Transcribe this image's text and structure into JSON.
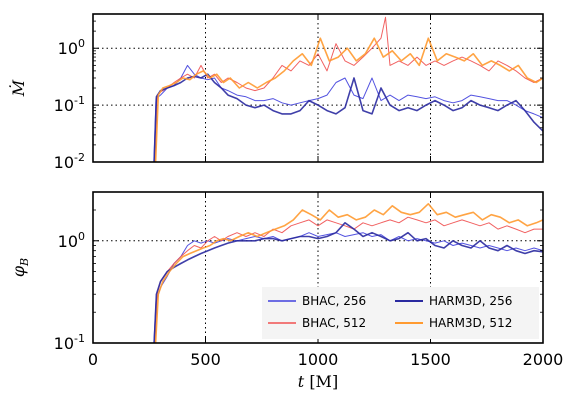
{
  "chart_data": [
    {
      "type": "line",
      "ylabel": "Ṁ",
      "yscale": "log",
      "ylim": [
        0.01,
        4
      ],
      "xlim": [
        0,
        2000
      ],
      "yticks": [
        {
          "label_base": "10",
          "label_exp": "-2",
          "v": 0.01
        },
        {
          "label_base": "10",
          "label_exp": "-1",
          "v": 0.1
        },
        {
          "label_base": "10",
          "label_exp": "0",
          "v": 1
        }
      ],
      "grid": "dotted at x=500,1000,1500 and y=0.1,1",
      "series": [
        {
          "name": "BHAC, 256",
          "color": "#4040dd",
          "width": 1.0,
          "x": [
            270,
            280,
            300,
            330,
            360,
            390,
            420,
            450,
            480,
            510,
            540,
            570,
            600,
            640,
            680,
            720,
            760,
            800,
            840,
            880,
            920,
            960,
            1000,
            1040,
            1080,
            1120,
            1160,
            1200,
            1240,
            1280,
            1320,
            1360,
            1400,
            1440,
            1480,
            1520,
            1560,
            1600,
            1640,
            1680,
            1720,
            1760,
            1800,
            1840,
            1880,
            1920,
            1960,
            2000
          ],
          "y": [
            0.01,
            0.13,
            0.15,
            0.2,
            0.22,
            0.3,
            0.5,
            0.35,
            0.3,
            0.28,
            0.3,
            0.2,
            0.18,
            0.15,
            0.14,
            0.12,
            0.12,
            0.13,
            0.11,
            0.1,
            0.11,
            0.12,
            0.13,
            0.15,
            0.25,
            0.3,
            0.15,
            0.13,
            0.3,
            0.12,
            0.15,
            0.12,
            0.15,
            0.14,
            0.13,
            0.14,
            0.12,
            0.11,
            0.12,
            0.15,
            0.14,
            0.13,
            0.12,
            0.12,
            0.1,
            0.08,
            0.07,
            0.06
          ]
        },
        {
          "name": "BHAC, 512",
          "color": "#f05050",
          "width": 1.0,
          "x": [
            275,
            285,
            300,
            330,
            360,
            390,
            420,
            450,
            480,
            510,
            540,
            570,
            600,
            640,
            680,
            720,
            760,
            800,
            840,
            880,
            920,
            960,
            1000,
            1040,
            1080,
            1120,
            1160,
            1200,
            1240,
            1280,
            1300,
            1320,
            1360,
            1400,
            1440,
            1480,
            1520,
            1560,
            1600,
            1640,
            1680,
            1720,
            1760,
            1800,
            1840,
            1880,
            1920,
            1960,
            2000
          ],
          "y": [
            0.01,
            0.15,
            0.17,
            0.2,
            0.25,
            0.3,
            0.35,
            0.3,
            0.5,
            0.3,
            0.35,
            0.25,
            0.3,
            0.25,
            0.2,
            0.18,
            0.2,
            0.3,
            0.5,
            0.4,
            0.6,
            0.5,
            0.8,
            0.4,
            1.2,
            0.6,
            0.5,
            0.7,
            1.0,
            1.5,
            3.5,
            0.5,
            0.6,
            0.5,
            0.7,
            0.5,
            0.6,
            0.5,
            0.6,
            0.7,
            0.6,
            0.5,
            0.4,
            0.6,
            0.5,
            0.4,
            0.3,
            0.25,
            0.3
          ]
        },
        {
          "name": "HARM3D, 256",
          "color": "#2a2aa0",
          "width": 1.6,
          "x": [
            272,
            282,
            300,
            330,
            360,
            390,
            420,
            450,
            480,
            510,
            540,
            570,
            600,
            640,
            680,
            720,
            760,
            800,
            840,
            880,
            920,
            960,
            1000,
            1040,
            1080,
            1120,
            1160,
            1200,
            1240,
            1280,
            1320,
            1360,
            1400,
            1440,
            1480,
            1520,
            1560,
            1600,
            1640,
            1680,
            1720,
            1760,
            1800,
            1840,
            1880,
            1920,
            1960,
            2000
          ],
          "y": [
            0.01,
            0.14,
            0.18,
            0.2,
            0.22,
            0.25,
            0.3,
            0.32,
            0.3,
            0.35,
            0.25,
            0.2,
            0.15,
            0.13,
            0.1,
            0.09,
            0.1,
            0.08,
            0.07,
            0.07,
            0.08,
            0.12,
            0.1,
            0.08,
            0.07,
            0.09,
            0.3,
            0.08,
            0.07,
            0.2,
            0.1,
            0.08,
            0.09,
            0.08,
            0.1,
            0.12,
            0.1,
            0.08,
            0.09,
            0.12,
            0.1,
            0.09,
            0.08,
            0.1,
            0.12,
            0.08,
            0.05,
            0.035
          ]
        },
        {
          "name": "HARM3D, 512",
          "color": "#ff9a30",
          "width": 1.6,
          "x": [
            278,
            290,
            310,
            340,
            370,
            400,
            430,
            460,
            490,
            520,
            550,
            580,
            610,
            650,
            690,
            730,
            770,
            810,
            850,
            890,
            930,
            970,
            1010,
            1050,
            1090,
            1130,
            1170,
            1210,
            1250,
            1290,
            1330,
            1370,
            1410,
            1450,
            1490,
            1530,
            1570,
            1610,
            1650,
            1690,
            1730,
            1770,
            1810,
            1850,
            1890,
            1930,
            1970,
            2000
          ],
          "y": [
            0.01,
            0.15,
            0.2,
            0.22,
            0.25,
            0.3,
            0.28,
            0.35,
            0.4,
            0.3,
            0.35,
            0.25,
            0.3,
            0.2,
            0.25,
            0.2,
            0.25,
            0.3,
            0.4,
            0.6,
            0.8,
            0.5,
            1.5,
            0.6,
            0.7,
            1.0,
            0.6,
            0.8,
            1.5,
            0.7,
            0.9,
            0.6,
            0.8,
            0.5,
            1.5,
            0.6,
            0.8,
            0.7,
            0.6,
            0.8,
            0.5,
            0.6,
            0.5,
            0.4,
            0.5,
            0.3,
            0.25,
            0.3
          ]
        }
      ]
    },
    {
      "type": "line",
      "ylabel": "φ_B",
      "xlabel": "t [M]",
      "yscale": "log",
      "ylim": [
        0.1,
        3
      ],
      "xlim": [
        0,
        2000
      ],
      "xticks": [
        0,
        500,
        1000,
        1500,
        2000
      ],
      "yticks": [
        {
          "label_base": "10",
          "label_exp": "-1",
          "v": 0.1
        },
        {
          "label_base": "10",
          "label_exp": "0",
          "v": 1
        }
      ],
      "grid": "dotted at x=500,1000,1500 and y=1",
      "legend": "lower-right",
      "series": [
        {
          "name": "BHAC, 256",
          "color": "#4040dd",
          "width": 1.0,
          "x": [
            270,
            280,
            300,
            330,
            360,
            390,
            420,
            450,
            480,
            510,
            540,
            570,
            600,
            640,
            680,
            720,
            760,
            800,
            840,
            880,
            920,
            960,
            1000,
            1040,
            1080,
            1120,
            1160,
            1200,
            1240,
            1280,
            1320,
            1360,
            1400,
            1440,
            1480,
            1520,
            1560,
            1600,
            1640,
            1680,
            1720,
            1760,
            1800,
            1840,
            1880,
            1920,
            1960,
            2000
          ],
          "y": [
            0.1,
            0.25,
            0.35,
            0.45,
            0.6,
            0.7,
            0.9,
            1.0,
            0.95,
            1.0,
            0.95,
            1.0,
            1.05,
            1.0,
            1.05,
            1.1,
            1.05,
            1.1,
            1.0,
            1.05,
            1.1,
            1.2,
            1.1,
            1.15,
            1.2,
            1.1,
            1.15,
            1.2,
            1.1,
            1.15,
            1.0,
            1.1,
            1.0,
            1.05,
            1.0,
            0.95,
            1.0,
            0.9,
            0.95,
            0.9,
            0.85,
            0.9,
            0.85,
            0.8,
            0.85,
            0.8,
            0.85,
            0.8
          ]
        },
        {
          "name": "BHAC, 512",
          "color": "#f05050",
          "width": 1.0,
          "x": [
            275,
            285,
            300,
            330,
            360,
            390,
            420,
            450,
            480,
            510,
            540,
            570,
            600,
            640,
            680,
            720,
            760,
            800,
            840,
            880,
            920,
            960,
            1000,
            1040,
            1080,
            1120,
            1160,
            1200,
            1240,
            1280,
            1320,
            1360,
            1400,
            1440,
            1480,
            1520,
            1560,
            1600,
            1640,
            1680,
            1720,
            1760,
            1800,
            1840,
            1880,
            1920,
            1960,
            2000
          ],
          "y": [
            0.1,
            0.3,
            0.4,
            0.5,
            0.6,
            0.7,
            0.8,
            0.9,
            0.85,
            1.0,
            1.1,
            1.0,
            1.1,
            1.2,
            1.1,
            1.2,
            1.1,
            1.3,
            1.2,
            1.4,
            1.5,
            1.6,
            1.4,
            1.6,
            1.5,
            1.4,
            1.3,
            1.5,
            1.4,
            1.5,
            1.6,
            1.5,
            1.7,
            1.6,
            1.5,
            1.6,
            1.4,
            1.5,
            1.6,
            1.5,
            1.4,
            1.5,
            1.3,
            1.4,
            1.3,
            1.2,
            1.3,
            1.3
          ]
        },
        {
          "name": "HARM3D, 256",
          "color": "#2a2aa0",
          "width": 1.6,
          "x": [
            272,
            282,
            300,
            330,
            360,
            390,
            420,
            450,
            480,
            510,
            540,
            570,
            600,
            640,
            680,
            720,
            760,
            800,
            840,
            880,
            920,
            960,
            1000,
            1040,
            1080,
            1120,
            1160,
            1200,
            1240,
            1280,
            1320,
            1360,
            1400,
            1440,
            1480,
            1520,
            1560,
            1600,
            1640,
            1680,
            1720,
            1760,
            1800,
            1840,
            1880,
            1920,
            1960,
            2000
          ],
          "y": [
            0.1,
            0.3,
            0.4,
            0.5,
            0.55,
            0.6,
            0.65,
            0.7,
            0.75,
            0.8,
            0.85,
            0.9,
            0.95,
            1.0,
            1.0,
            1.0,
            1.05,
            1.05,
            1.0,
            1.05,
            1.1,
            1.1,
            1.05,
            1.1,
            1.2,
            1.5,
            1.3,
            1.1,
            1.2,
            1.1,
            1.0,
            1.05,
            1.2,
            1.0,
            1.05,
            0.9,
            0.85,
            1.0,
            0.9,
            0.85,
            1.0,
            0.85,
            0.8,
            0.9,
            0.8,
            0.75,
            0.8,
            0.78
          ]
        },
        {
          "name": "HARM3D, 512",
          "color": "#ff9a30",
          "width": 1.6,
          "x": [
            278,
            290,
            310,
            340,
            370,
            400,
            430,
            460,
            490,
            520,
            550,
            580,
            610,
            650,
            690,
            730,
            770,
            810,
            850,
            890,
            930,
            970,
            1010,
            1050,
            1090,
            1130,
            1170,
            1210,
            1250,
            1290,
            1330,
            1370,
            1410,
            1450,
            1490,
            1530,
            1570,
            1610,
            1650,
            1690,
            1730,
            1770,
            1810,
            1850,
            1890,
            1930,
            1970,
            2000
          ],
          "y": [
            0.1,
            0.3,
            0.4,
            0.5,
            0.6,
            0.7,
            0.75,
            0.8,
            0.85,
            0.9,
            1.0,
            1.05,
            1.0,
            1.1,
            1.2,
            1.1,
            1.2,
            1.3,
            1.4,
            1.6,
            2.0,
            1.8,
            1.6,
            2.0,
            1.7,
            1.8,
            1.6,
            1.7,
            2.0,
            1.8,
            2.2,
            1.9,
            1.8,
            1.9,
            2.3,
            1.8,
            1.9,
            1.7,
            1.8,
            1.9,
            1.6,
            1.8,
            1.7,
            1.5,
            1.6,
            1.4,
            1.5,
            1.6
          ]
        }
      ]
    }
  ]
}
